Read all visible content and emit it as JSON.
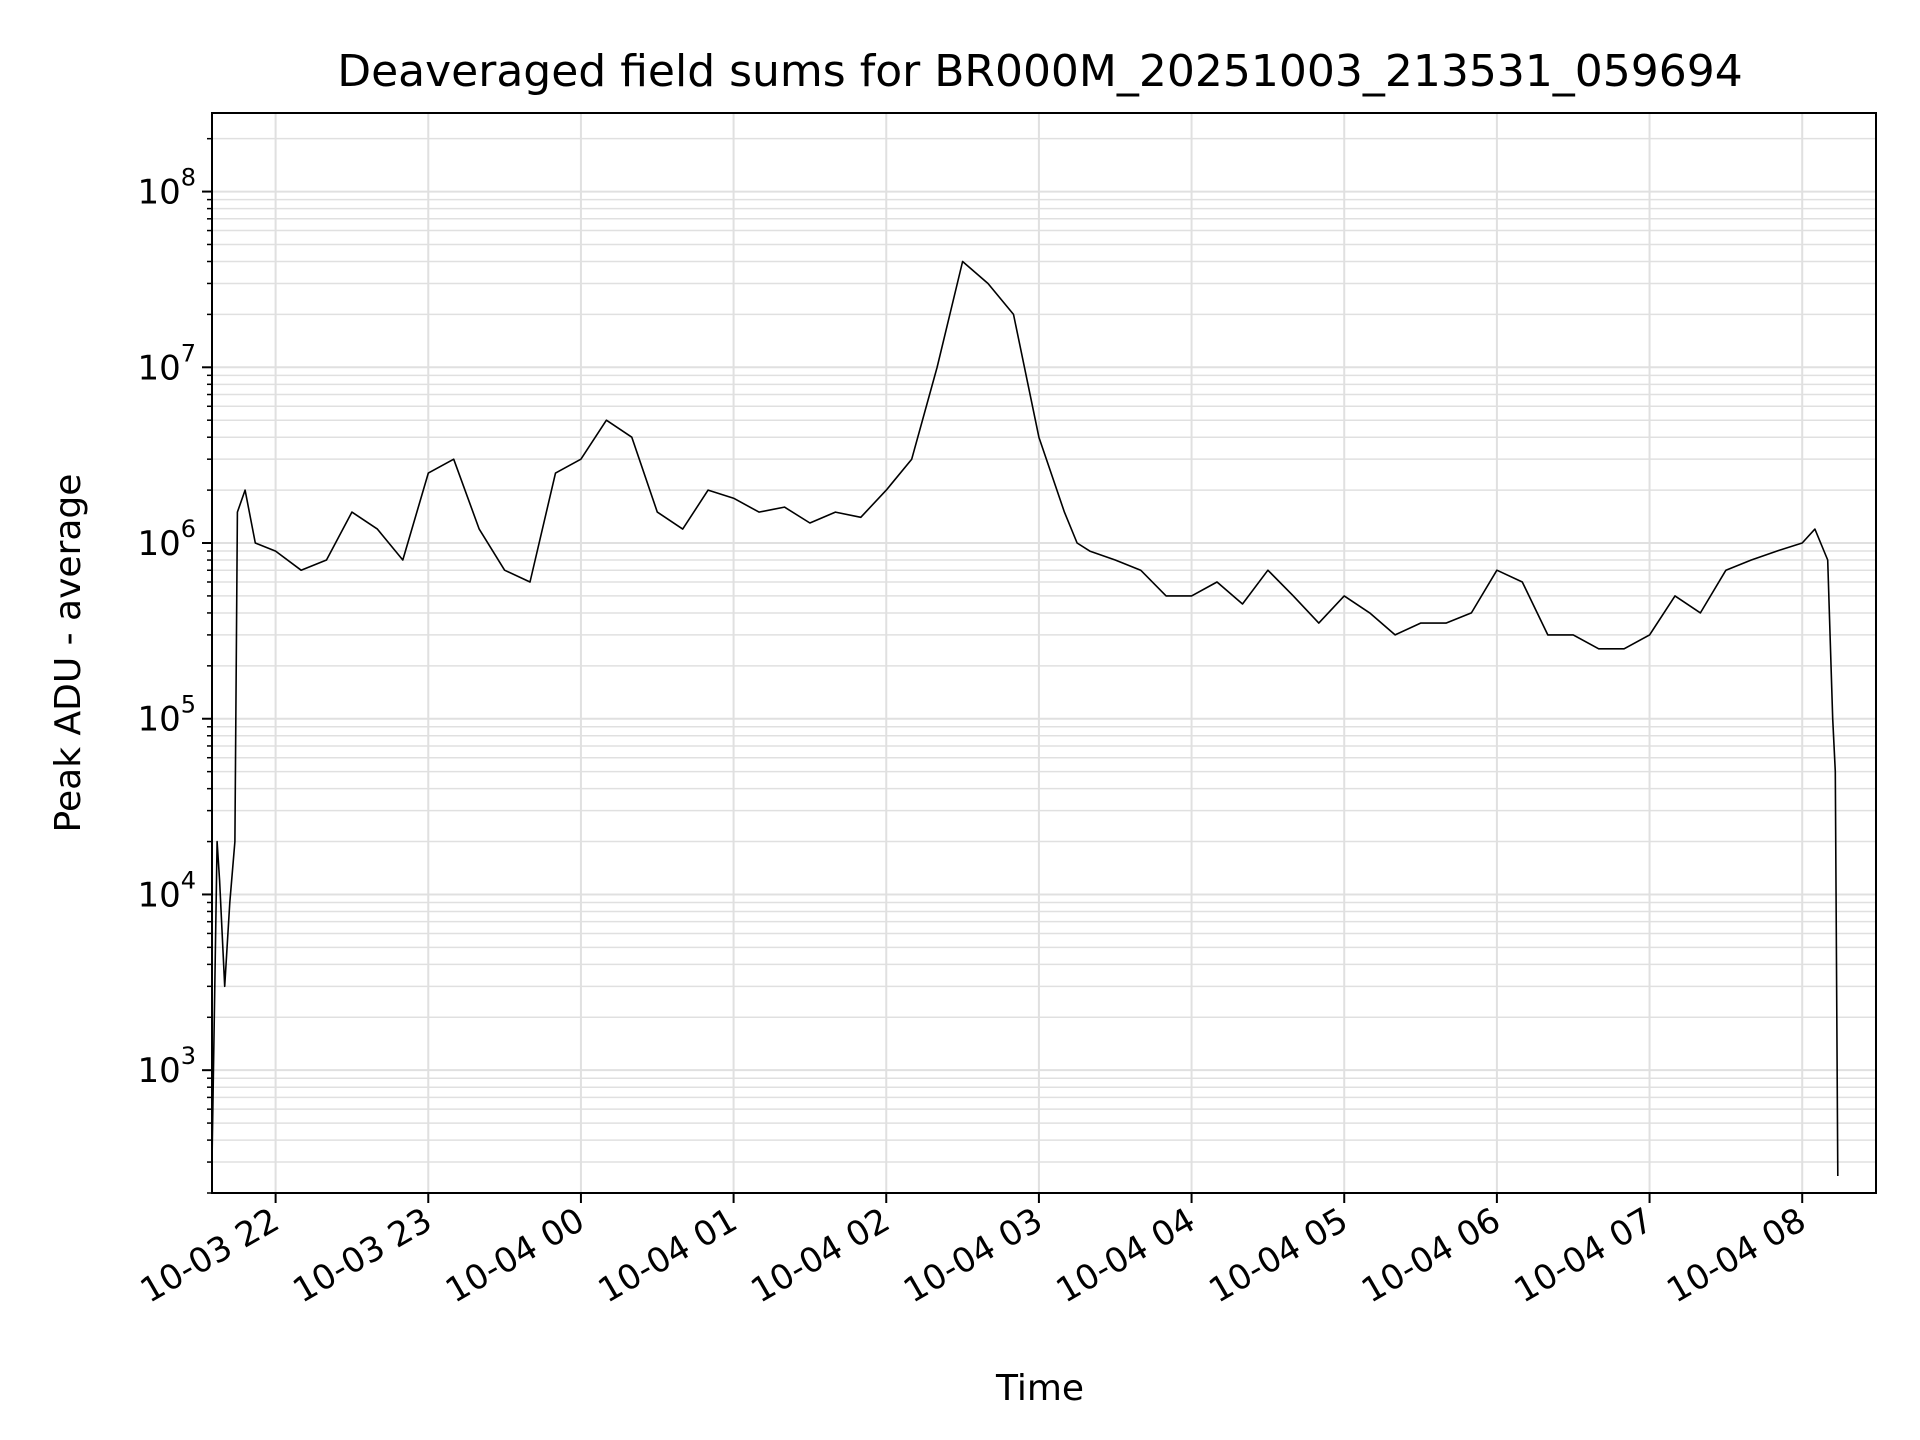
{
  "chart_data": {
    "type": "line",
    "title": "Deaveraged field sums for BR000M_20251003_213531_059694",
    "xlabel": "Time",
    "ylabel": "Peak ADU - average",
    "yscale": "log",
    "grid": true,
    "line_color": "#000000",
    "grid_color": "#e0e0e0",
    "xlim": [
      "2025-10-03 21:35",
      "2025-10-04 08:29"
    ],
    "ylim": [
      200,
      280000000
    ],
    "x_ticks": [
      {
        "t": "2025-10-03 22:00",
        "label": "10-03 22"
      },
      {
        "t": "2025-10-03 23:00",
        "label": "10-03 23"
      },
      {
        "t": "2025-10-04 00:00",
        "label": "10-04 00"
      },
      {
        "t": "2025-10-04 01:00",
        "label": "10-04 01"
      },
      {
        "t": "2025-10-04 02:00",
        "label": "10-04 02"
      },
      {
        "t": "2025-10-04 03:00",
        "label": "10-04 03"
      },
      {
        "t": "2025-10-04 04:00",
        "label": "10-04 04"
      },
      {
        "t": "2025-10-04 05:00",
        "label": "10-04 05"
      },
      {
        "t": "2025-10-04 06:00",
        "label": "10-04 06"
      },
      {
        "t": "2025-10-04 07:00",
        "label": "10-04 07"
      },
      {
        "t": "2025-10-04 08:00",
        "label": "10-04 08"
      }
    ],
    "y_ticks": [
      {
        "v": 1000,
        "base": "10",
        "exp": "3"
      },
      {
        "v": 10000,
        "base": "10",
        "exp": "4"
      },
      {
        "v": 100000,
        "base": "10",
        "exp": "5"
      },
      {
        "v": 1000000,
        "base": "10",
        "exp": "6"
      },
      {
        "v": 10000000,
        "base": "10",
        "exp": "7"
      },
      {
        "v": 100000000,
        "base": "10",
        "exp": "8"
      }
    ],
    "series": [
      {
        "x": [
          "2025-10-03 21:35",
          "2025-10-03 21:37",
          "2025-10-03 21:38",
          "2025-10-03 21:40",
          "2025-10-03 21:42",
          "2025-10-03 21:44",
          "2025-10-03 21:45",
          "2025-10-03 21:48",
          "2025-10-03 21:52",
          "2025-10-03 22:00",
          "2025-10-03 22:10",
          "2025-10-03 22:20",
          "2025-10-03 22:30",
          "2025-10-03 22:40",
          "2025-10-03 22:50",
          "2025-10-03 23:00",
          "2025-10-03 23:10",
          "2025-10-03 23:20",
          "2025-10-03 23:30",
          "2025-10-03 23:40",
          "2025-10-03 23:50",
          "2025-10-04 00:00",
          "2025-10-04 00:10",
          "2025-10-04 00:20",
          "2025-10-04 00:30",
          "2025-10-04 00:40",
          "2025-10-04 00:50",
          "2025-10-04 01:00",
          "2025-10-04 01:10",
          "2025-10-04 01:20",
          "2025-10-04 01:30",
          "2025-10-04 01:40",
          "2025-10-04 01:50",
          "2025-10-04 02:00",
          "2025-10-04 02:10",
          "2025-10-04 02:20",
          "2025-10-04 02:30",
          "2025-10-04 02:40",
          "2025-10-04 02:50",
          "2025-10-04 03:00",
          "2025-10-04 03:10",
          "2025-10-04 03:15",
          "2025-10-04 03:20",
          "2025-10-04 03:30",
          "2025-10-04 03:40",
          "2025-10-04 03:50",
          "2025-10-04 04:00",
          "2025-10-04 04:10",
          "2025-10-04 04:20",
          "2025-10-04 04:30",
          "2025-10-04 04:40",
          "2025-10-04 04:50",
          "2025-10-04 05:00",
          "2025-10-04 05:10",
          "2025-10-04 05:20",
          "2025-10-04 05:30",
          "2025-10-04 05:40",
          "2025-10-04 05:50",
          "2025-10-04 06:00",
          "2025-10-04 06:10",
          "2025-10-04 06:20",
          "2025-10-04 06:30",
          "2025-10-04 06:40",
          "2025-10-04 06:50",
          "2025-10-04 07:00",
          "2025-10-04 07:10",
          "2025-10-04 07:20",
          "2025-10-04 07:30",
          "2025-10-04 07:40",
          "2025-10-04 07:50",
          "2025-10-04 08:00",
          "2025-10-04 08:05",
          "2025-10-04 08:10",
          "2025-10-04 08:12",
          "2025-10-04 08:13",
          "2025-10-04 08:14"
        ],
        "y": [
          300,
          20000,
          12000,
          3000,
          9000,
          20000,
          1500000,
          2000000,
          1000000,
          900000,
          700000,
          800000,
          1500000,
          1200000,
          800000,
          2500000,
          3000000,
          1200000,
          700000,
          600000,
          2500000,
          3000000,
          5000000,
          4000000,
          1500000,
          1200000,
          2000000,
          1800000,
          1500000,
          1600000,
          1300000,
          1500000,
          1400000,
          2000000,
          3000000,
          10000000,
          40000000,
          30000000,
          20000000,
          4000000,
          1500000,
          1000000,
          900000,
          800000,
          700000,
          500000,
          500000,
          600000,
          450000,
          700000,
          500000,
          350000,
          500000,
          400000,
          300000,
          350000,
          350000,
          400000,
          700000,
          600000,
          300000,
          300000,
          250000,
          250000,
          300000,
          500000,
          400000,
          700000,
          800000,
          900000,
          1000000,
          1200000,
          800000,
          100000,
          50000,
          250
        ]
      }
    ]
  }
}
